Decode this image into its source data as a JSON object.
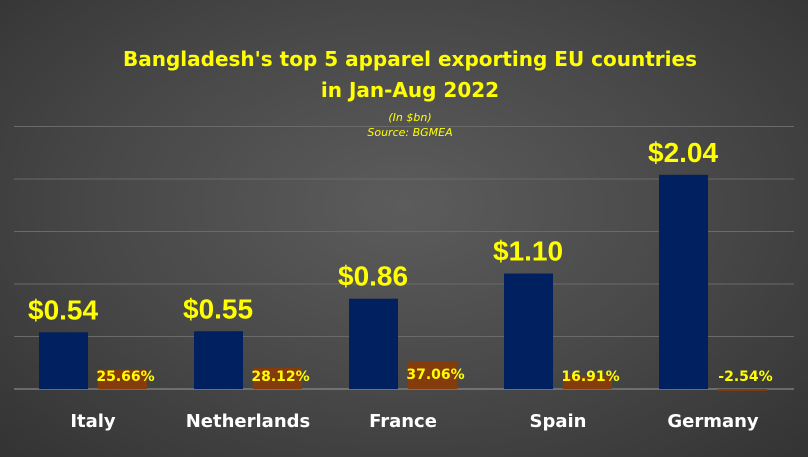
{
  "chart_data": {
    "type": "bar",
    "title_lines": [
      "Bangladesh's top 5 apparel exporting EU countries",
      "in Jan-Aug 2022"
    ],
    "subtitle_lines": [
      "(In $bn)",
      "Source:  BGMEA"
    ],
    "categories": [
      "Italy",
      "Netherlands",
      "France",
      "Spain",
      "Germany"
    ],
    "series": [
      {
        "values": [
          0.54,
          0.55,
          0.86,
          1.1,
          2.04
        ],
        "labels": [
          "$0.54",
          "$0.55",
          "$0.86",
          "$1.10",
          "$2.04"
        ],
        "color": "#002060"
      },
      {
        "values": [
          25.66,
          28.12,
          37.06,
          16.91,
          -2.54
        ],
        "labels": [
          "25.66%",
          "28.12%",
          "37.06%",
          "16.91%",
          "-2.54%"
        ],
        "color": "#843c0c"
      }
    ],
    "grid": true,
    "legend": "none"
  }
}
